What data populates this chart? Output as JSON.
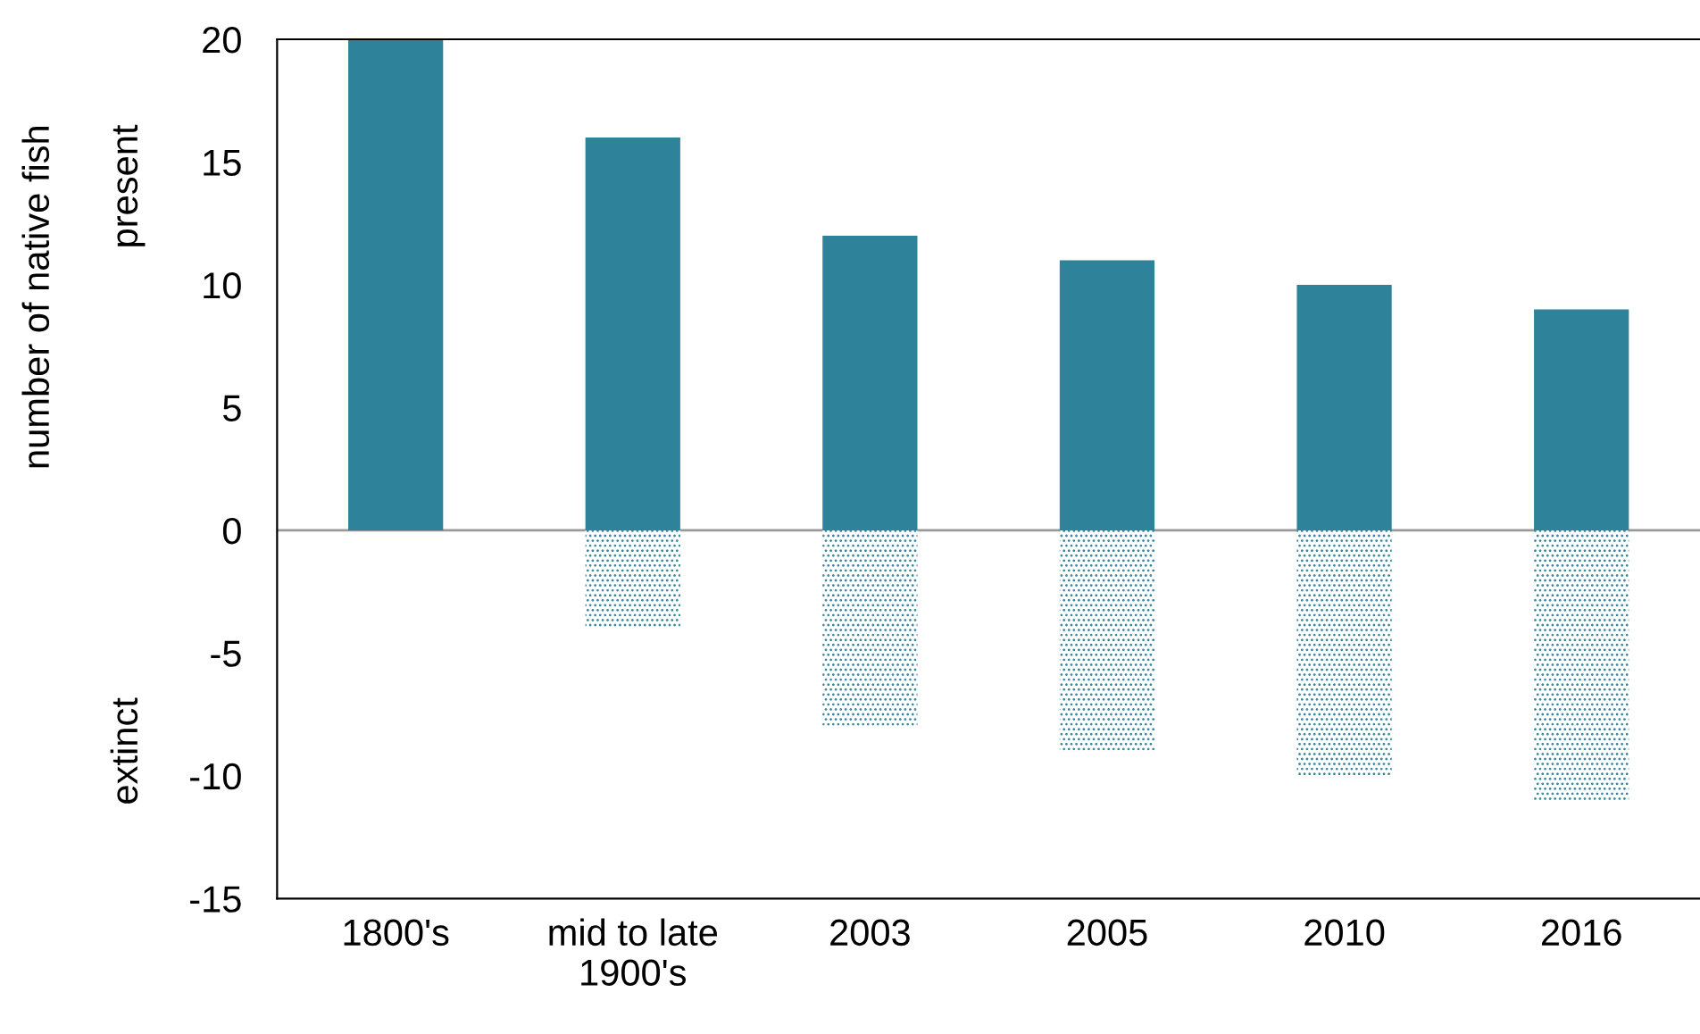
{
  "chart_data": {
    "type": "bar",
    "stacked": true,
    "ylabel": "number of native fish",
    "annotations": [
      "present",
      "extinct"
    ],
    "categories": [
      "1800's",
      "mid to late\n1900's",
      "2003",
      "2005",
      "2010",
      "2016"
    ],
    "series": [
      {
        "color": "#2e8299",
        "values": [
          20,
          16,
          12,
          11,
          10,
          9
        ]
      },
      {
        "color": "#2e8299",
        "values": [
          null,
          -4,
          -8,
          -9,
          -10,
          -11
        ]
      }
    ],
    "ylim": [
      -15,
      20
    ],
    "yticks": [
      -15,
      -10,
      -5,
      0,
      5,
      10,
      15,
      20
    ],
    "legend": false
  }
}
